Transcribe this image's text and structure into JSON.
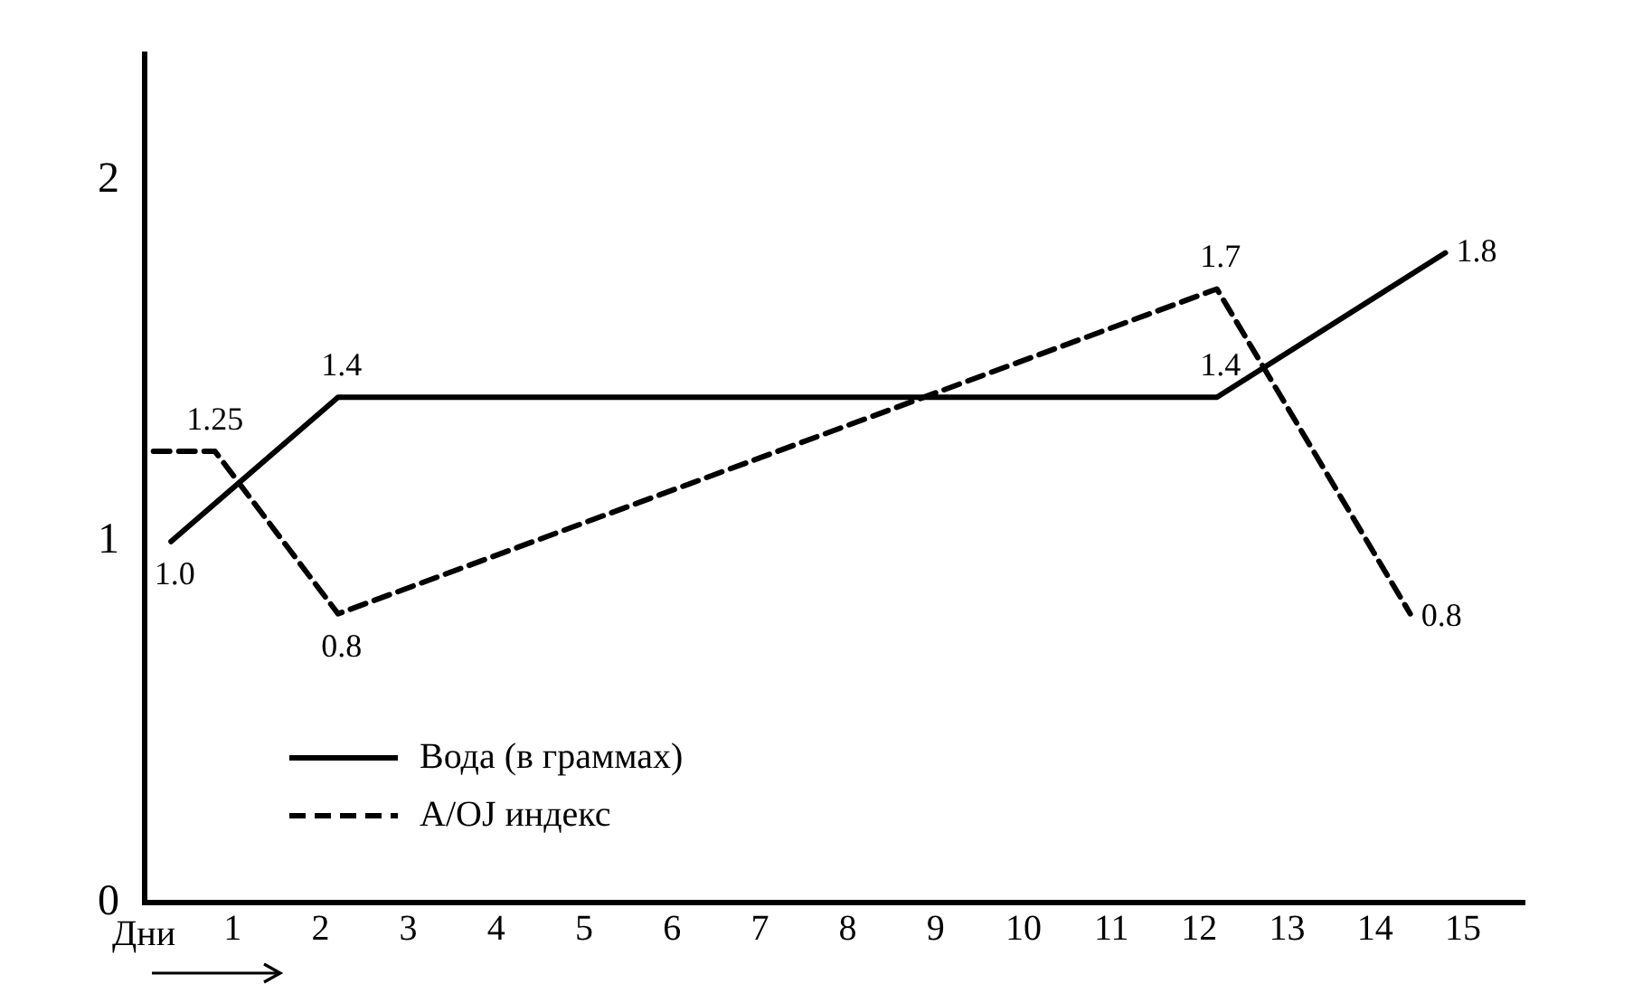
{
  "chart_data": {
    "type": "line",
    "xlabel": "Дни",
    "xlim": [
      0,
      15.7
    ],
    "xticks": [
      1,
      2,
      3,
      4,
      5,
      6,
      7,
      8,
      9,
      10,
      11,
      12,
      13,
      14,
      15
    ],
    "ylim": [
      0,
      2.35
    ],
    "yticks": [
      0,
      1,
      2
    ],
    "grid": false,
    "legend": "bottom left",
    "marker": "none",
    "series": [
      {
        "name": "Вода (в граммах)",
        "color": "#000000",
        "line_style": "solid",
        "x": [
          0.3,
          2.2,
          12.2,
          14.8
        ],
        "values": [
          1.0,
          1.4,
          1.4,
          1.8
        ],
        "value_labels": [
          "1.0",
          "1.4",
          "1.4",
          "1.8"
        ]
      },
      {
        "name": "A/OJ индекс",
        "color": "#000000",
        "line_style": "dashed",
        "x": [
          0.1,
          0.8,
          2.2,
          12.2,
          14.4
        ],
        "values": [
          1.25,
          1.25,
          0.8,
          1.7,
          0.8
        ],
        "value_labels": [
          null,
          "1.25",
          "0.8",
          "1.7",
          "0.8"
        ]
      }
    ]
  }
}
